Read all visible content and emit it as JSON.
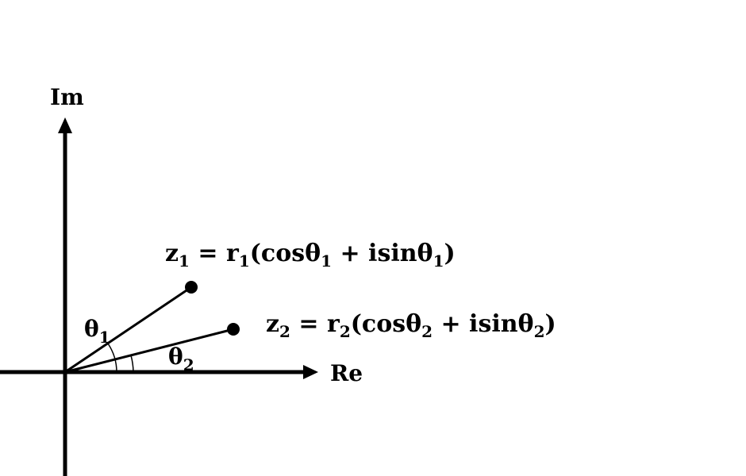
{
  "axes": {
    "real_label": "Re",
    "imag_label": "Im"
  },
  "points": [
    {
      "id": "z1",
      "var": "z",
      "sub": "1",
      "eq_text": " = r",
      "r_sub": "1",
      "cos_text": "(cosθ",
      "cos_sub": "1",
      "plus_text": " + isinθ",
      "sin_sub": "1",
      "close_text": ")",
      "angle_var": "θ",
      "angle_sub": "1"
    },
    {
      "id": "z2",
      "var": "z",
      "sub": "2",
      "eq_text": " = r",
      "r_sub": "2",
      "cos_text": "(cosθ",
      "cos_sub": "2",
      "plus_text": " + isinθ",
      "sin_sub": "2",
      "close_text": ")",
      "angle_var": "θ",
      "angle_sub": "2"
    }
  ]
}
